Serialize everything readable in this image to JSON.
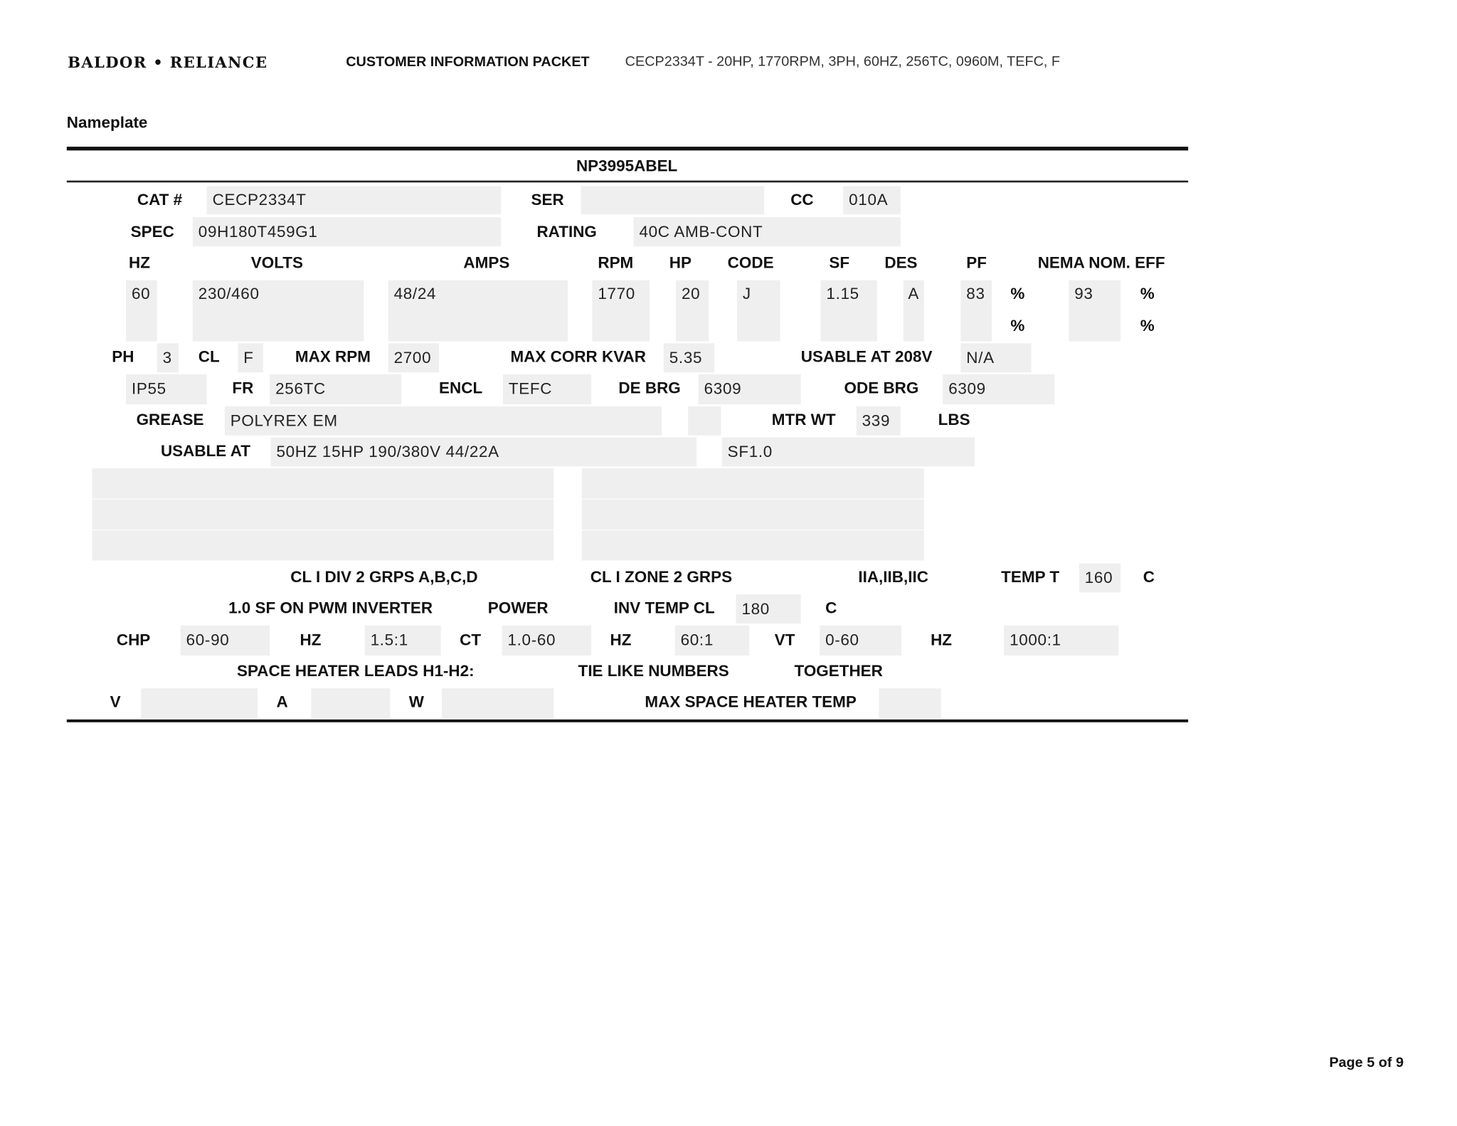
{
  "header": {
    "brand": "BALDOR • RELIANCE",
    "packet_title": "CUSTOMER INFORMATION PACKET",
    "description": "CECP2334T - 20HP, 1770RPM, 3PH, 60HZ, 256TC, 0960M, TEFC, F"
  },
  "section_title": "Nameplate",
  "nameplate": {
    "id": "NP3995ABEL",
    "labels": {
      "cat": "CAT #",
      "ser": "SER",
      "cc": "CC",
      "spec": "SPEC",
      "rating": "RATING",
      "hz": "HZ",
      "volts": "VOLTS",
      "amps": "AMPS",
      "rpm": "RPM",
      "hp": "HP",
      "code": "CODE",
      "sf": "SF",
      "des": "DES",
      "pf": "PF",
      "eff": "NEMA NOM. EFF",
      "pct": "%",
      "ph": "PH",
      "cl": "CL",
      "max_rpm": "MAX RPM",
      "max_kvar": "MAX CORR KVAR",
      "usable_208": "USABLE AT 208V",
      "fr": "FR",
      "encl": "ENCL",
      "de_brg": "DE BRG",
      "ode_brg": "ODE BRG",
      "grease": "GREASE",
      "mtr_wt": "MTR WT",
      "lbs": "LBS",
      "usable_at": "USABLE AT",
      "div2": "CL I DIV 2 GRPS A,B,C,D",
      "zone2": "CL I ZONE 2 GRPS",
      "groups": "IIA,IIB,IIC",
      "temp_t": "TEMP T",
      "c": "C",
      "pwm": "1.0 SF ON PWM INVERTER",
      "power": "POWER",
      "inv_temp": "INV TEMP CL",
      "chp": "CHP",
      "ct": "CT",
      "vt": "VT",
      "heater_leads": "SPACE HEATER LEADS H1-H2:",
      "tie": "TIE LIKE NUMBERS",
      "together": "TOGETHER",
      "v": "V",
      "a": "A",
      "w": "W",
      "max_heater": "MAX SPACE HEATER TEMP"
    },
    "values": {
      "cat": "CECP2334T",
      "ser": "",
      "cc": "010A",
      "spec": "09H180T459G1",
      "rating": "40C AMB-CONT",
      "hz": "60",
      "volts": "230/460",
      "amps": "48/24",
      "rpm": "1770",
      "hp": "20",
      "code": "J",
      "sf": "1.15",
      "des": "A",
      "pf": "83",
      "eff": "93",
      "ph": "3",
      "cl": "F",
      "max_rpm": "2700",
      "max_kvar": "5.35",
      "usable_208": "N/A",
      "ip": "IP55",
      "fr": "256TC",
      "encl": "TEFC",
      "de_brg": "6309",
      "ode_brg": "6309",
      "grease": "POLYREX EM",
      "mtr_wt": "339",
      "usable_at": "50HZ 15HP 190/380V 44/22A",
      "usable_sf": "SF1.0",
      "temp_t": "160",
      "inv_temp": "180",
      "chp": "60-90",
      "chp_hz": "1.5:1",
      "ct": "1.0-60",
      "ct_hz": "60:1",
      "vt": "0-60",
      "vt_hz": "1000:1"
    }
  },
  "footer": {
    "page": "Page 5 of 9"
  }
}
